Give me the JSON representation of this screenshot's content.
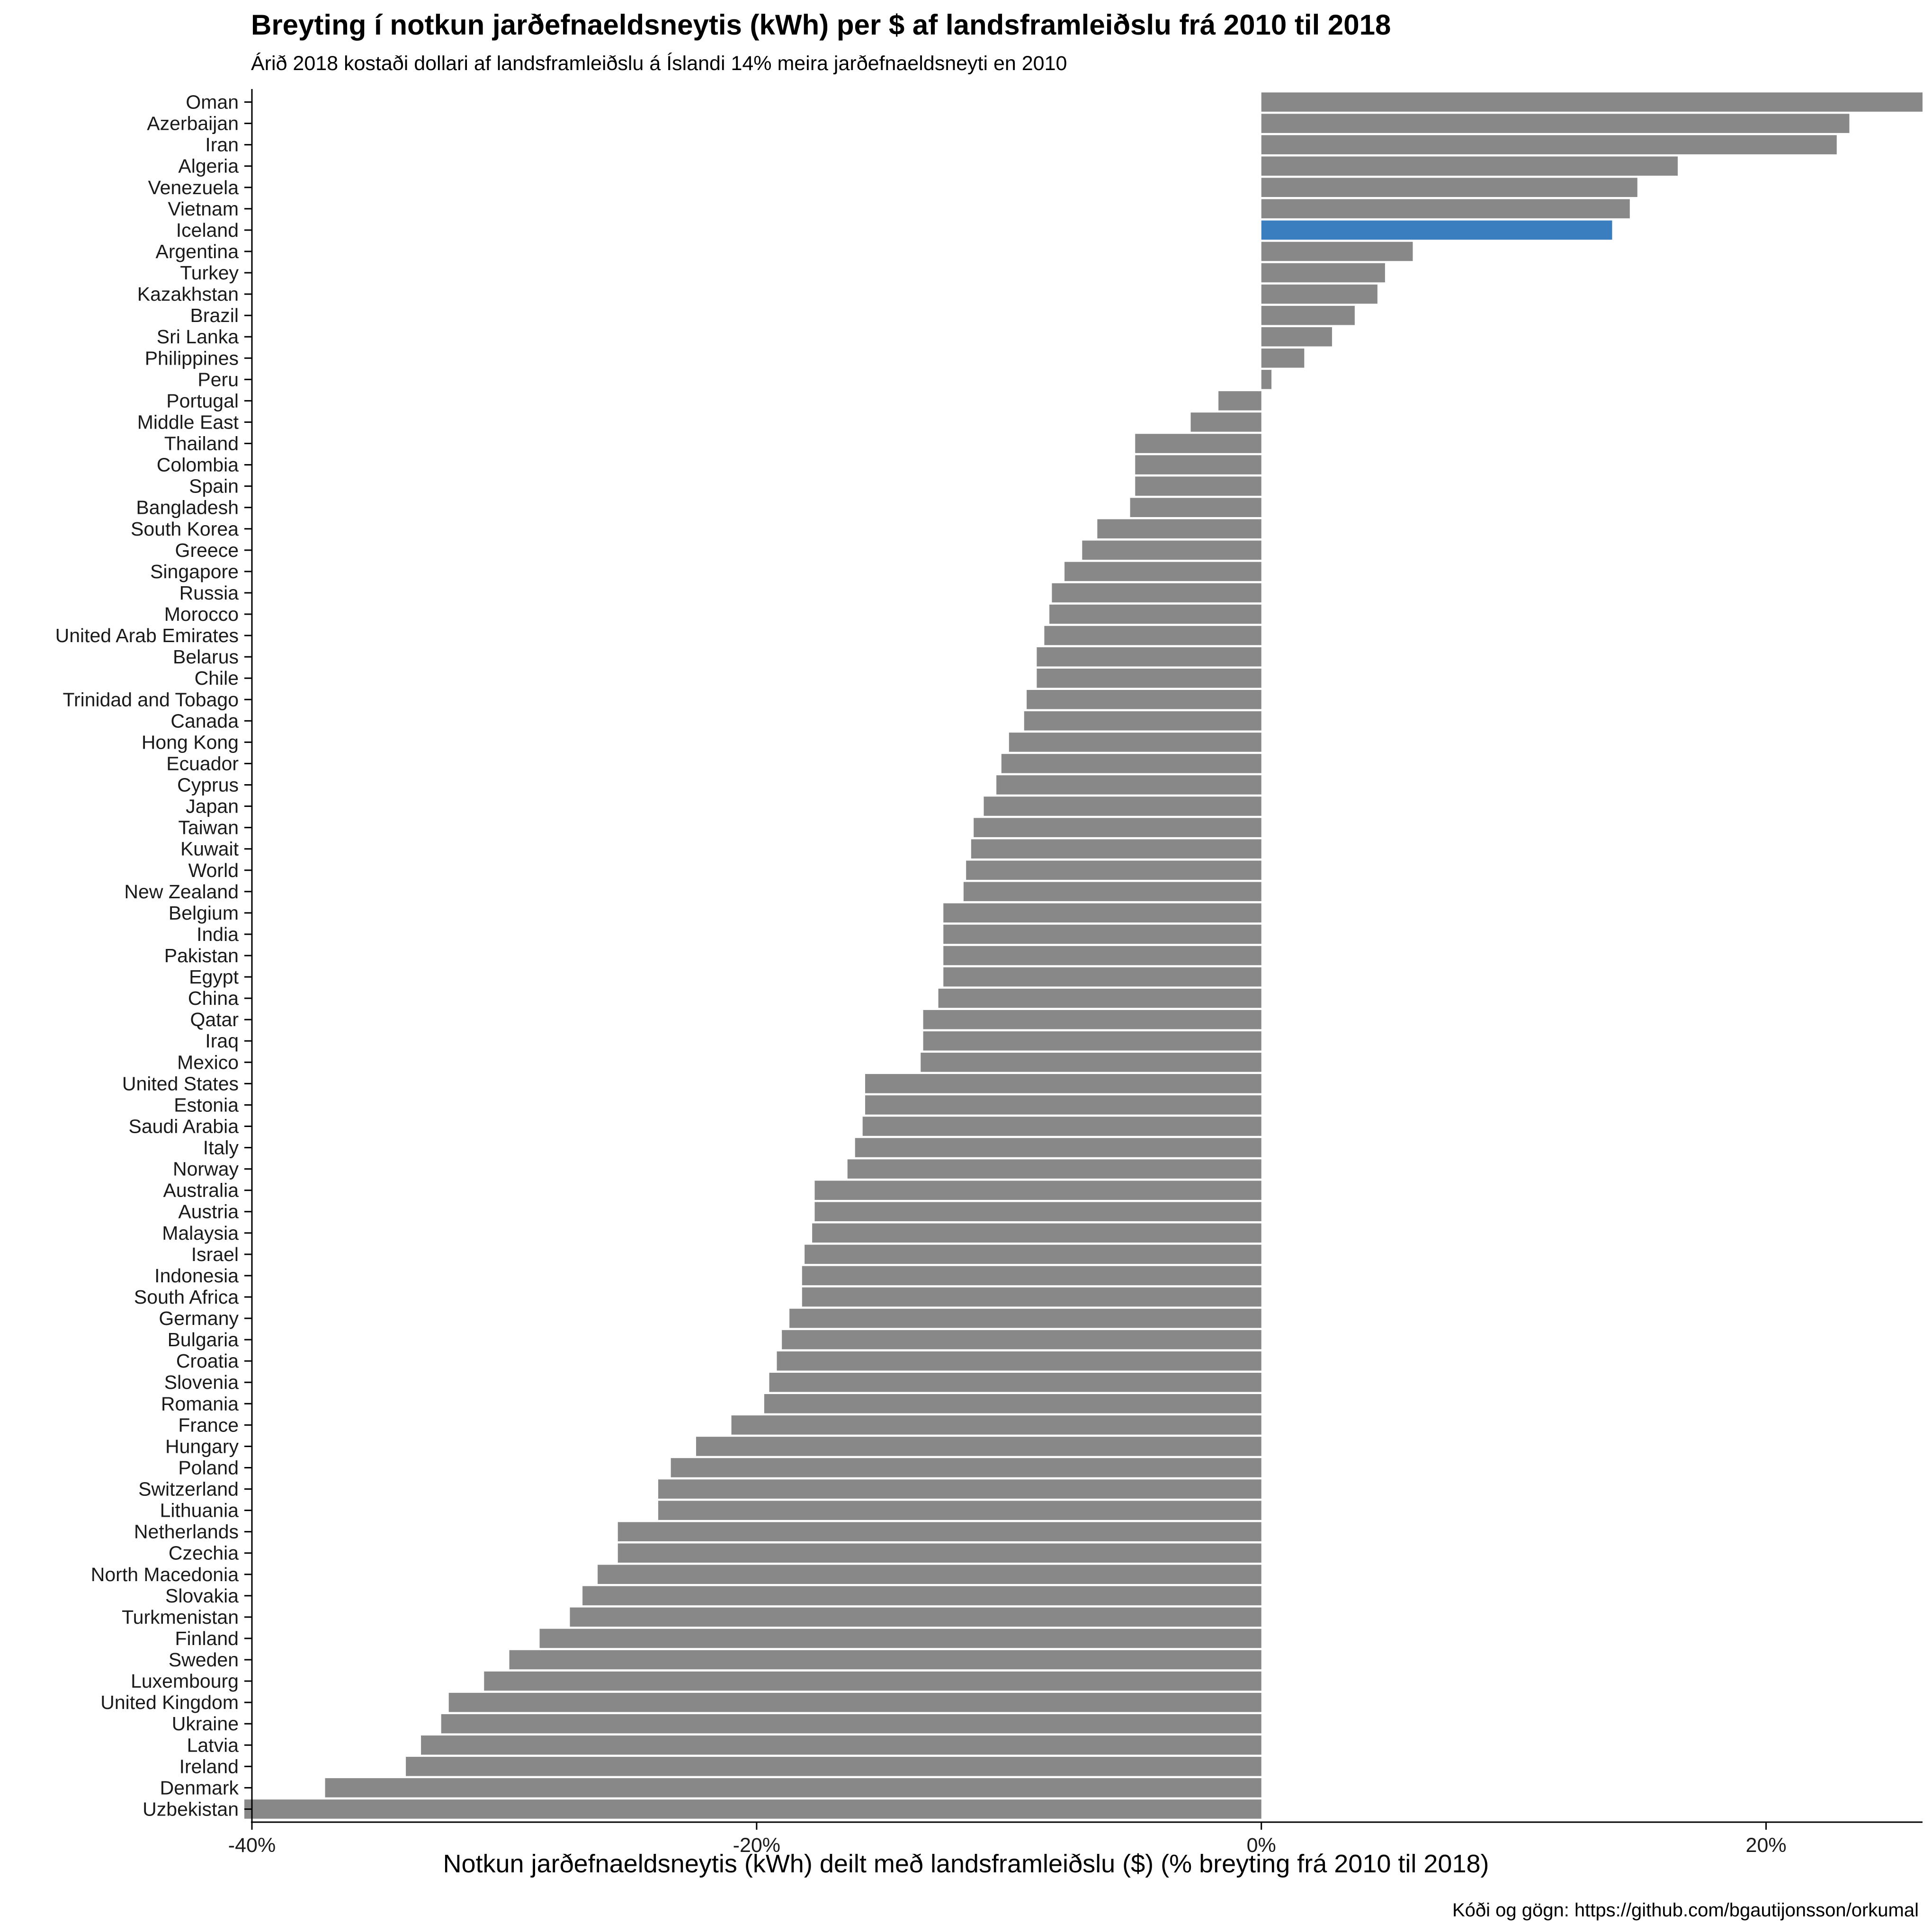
{
  "chart_data": {
    "type": "bar",
    "orientation": "horizontal",
    "title": "Breyting í notkun jarðefnaeldsneytis (kWh) per $ af landsframleiðslu frá 2010 til 2018",
    "subtitle": "Árið 2018 kostaði dollari af landsframleiðslu á Íslandi 14% meira jarðefnaeldsneyti en 2010",
    "xlabel": "Notkun jarðefnaeldsneytis (kWh) deilt með landsframleiðslu ($) (% breyting frá 2010 til 2018)",
    "ylabel": "",
    "caption": "Kóði og gögn: https://github.com/bgautijonsson/orkumal",
    "xlim": [
      -40,
      26.2
    ],
    "x_ticks": [
      -40,
      -20,
      0,
      20
    ],
    "x_tick_labels": [
      "-40%",
      "-20%",
      "0%",
      "20%"
    ],
    "colors": {
      "default": "#888888",
      "highlight": "#3a7ebf"
    },
    "highlight": "Iceland",
    "grid": false,
    "legend": "none",
    "categories": [
      "Oman",
      "Azerbaijan",
      "Iran",
      "Algeria",
      "Venezuela",
      "Vietnam",
      "Iceland",
      "Argentina",
      "Turkey",
      "Kazakhstan",
      "Brazil",
      "Sri Lanka",
      "Philippines",
      "Peru",
      "Portugal",
      "Middle East",
      "Thailand",
      "Colombia",
      "Spain",
      "Bangladesh",
      "South Korea",
      "Greece",
      "Singapore",
      "Russia",
      "Morocco",
      "United Arab Emirates",
      "Belarus",
      "Chile",
      "Trinidad and Tobago",
      "Canada",
      "Hong Kong",
      "Ecuador",
      "Cyprus",
      "Japan",
      "Taiwan",
      "Kuwait",
      "World",
      "New Zealand",
      "Belgium",
      "India",
      "Pakistan",
      "Egypt",
      "China",
      "Qatar",
      "Iraq",
      "Mexico",
      "United States",
      "Estonia",
      "Saudi Arabia",
      "Italy",
      "Norway",
      "Australia",
      "Austria",
      "Malaysia",
      "Israel",
      "Indonesia",
      "South Africa",
      "Germany",
      "Bulgaria",
      "Croatia",
      "Slovenia",
      "Romania",
      "France",
      "Hungary",
      "Poland",
      "Switzerland",
      "Lithuania",
      "Netherlands",
      "Czechia",
      "North Macedonia",
      "Slovakia",
      "Turkmenistan",
      "Finland",
      "Sweden",
      "Luxembourg",
      "United Kingdom",
      "Ukraine",
      "Latvia",
      "Ireland",
      "Denmark",
      "Uzbekistan"
    ],
    "values": [
      26.2,
      23.3,
      22.8,
      16.5,
      14.9,
      14.6,
      13.9,
      6.0,
      4.9,
      4.6,
      3.7,
      2.8,
      1.7,
      0.4,
      -1.7,
      -2.8,
      -5.0,
      -5.0,
      -5.0,
      -5.2,
      -6.5,
      -7.1,
      -7.8,
      -8.3,
      -8.4,
      -8.6,
      -8.9,
      -8.9,
      -9.3,
      -9.4,
      -10.0,
      -10.3,
      -10.5,
      -11.0,
      -11.4,
      -11.5,
      -11.7,
      -11.8,
      -12.6,
      -12.6,
      -12.6,
      -12.6,
      -12.8,
      -13.4,
      -13.4,
      -13.5,
      -15.7,
      -15.7,
      -15.8,
      -16.1,
      -16.4,
      -17.7,
      -17.7,
      -17.8,
      -18.1,
      -18.2,
      -18.2,
      -18.7,
      -19.0,
      -19.2,
      -19.5,
      -19.7,
      -21.0,
      -22.4,
      -23.4,
      -23.9,
      -23.9,
      -25.5,
      -25.5,
      -26.3,
      -26.9,
      -27.4,
      -28.6,
      -29.8,
      -30.8,
      -32.2,
      -32.5,
      -33.3,
      -33.9,
      -37.1,
      -40.3
    ]
  }
}
